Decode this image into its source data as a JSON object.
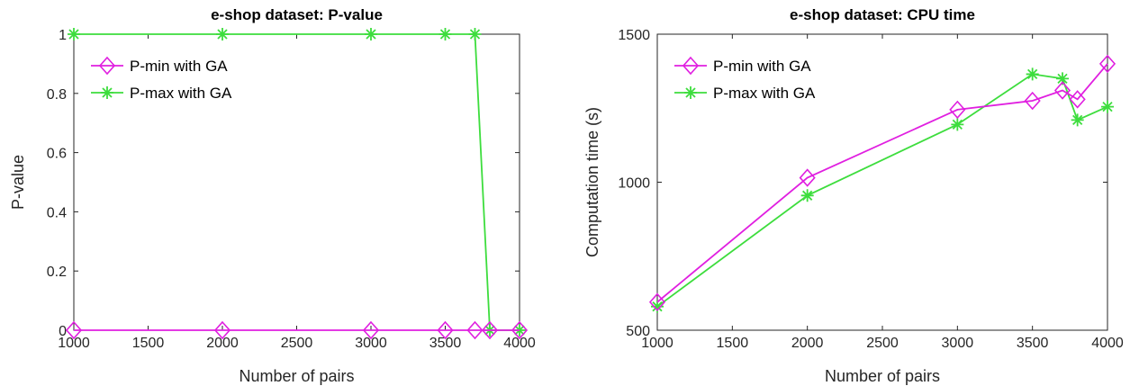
{
  "chart_data": [
    {
      "type": "line",
      "title": "e-shop dataset: P-value",
      "xlabel": "Number of pairs",
      "ylabel": "P-value",
      "xlim": [
        1000,
        4000
      ],
      "ylim": [
        0,
        1
      ],
      "xticks": [
        1000,
        1500,
        2000,
        2500,
        3000,
        3500,
        4000
      ],
      "yticks": [
        0,
        0.2,
        0.4,
        0.6,
        0.8,
        1
      ],
      "ytick_labels": [
        "0",
        "0.2",
        "0.4",
        "0.6",
        "0.8",
        "1"
      ],
      "grid": false,
      "legend_position": "top-left",
      "x": [
        1000,
        2000,
        3000,
        3500,
        3700,
        3800,
        4000
      ],
      "series": [
        {
          "name": "P-min with GA",
          "color": "#e01fe0",
          "marker": "diamond",
          "values": [
            0,
            0,
            0,
            0,
            0,
            0,
            0
          ]
        },
        {
          "name": "P-max with GA",
          "color": "#3ddd3d",
          "marker": "asterisk",
          "values": [
            1,
            1,
            1,
            1,
            1,
            0,
            0
          ]
        }
      ]
    },
    {
      "type": "line",
      "title": "e-shop dataset: CPU time",
      "xlabel": "Number of pairs",
      "ylabel": "Computation time (s)",
      "xlim": [
        1000,
        4000
      ],
      "ylim": [
        500,
        1500
      ],
      "xticks": [
        1000,
        1500,
        2000,
        2500,
        3000,
        3500,
        4000
      ],
      "yticks": [
        500,
        1000,
        1500
      ],
      "ytick_labels": [
        "500",
        "1000",
        "1500"
      ],
      "grid": false,
      "legend_position": "top-left",
      "x": [
        1000,
        2000,
        3000,
        3500,
        3700,
        3800,
        4000
      ],
      "series": [
        {
          "name": "P-min with GA",
          "color": "#e01fe0",
          "marker": "diamond",
          "values": [
            595,
            1015,
            1245,
            1275,
            1310,
            1280,
            1400
          ]
        },
        {
          "name": "P-max with GA",
          "color": "#3ddd3d",
          "marker": "asterisk",
          "values": [
            580,
            955,
            1195,
            1365,
            1350,
            1210,
            1255
          ]
        }
      ]
    }
  ]
}
